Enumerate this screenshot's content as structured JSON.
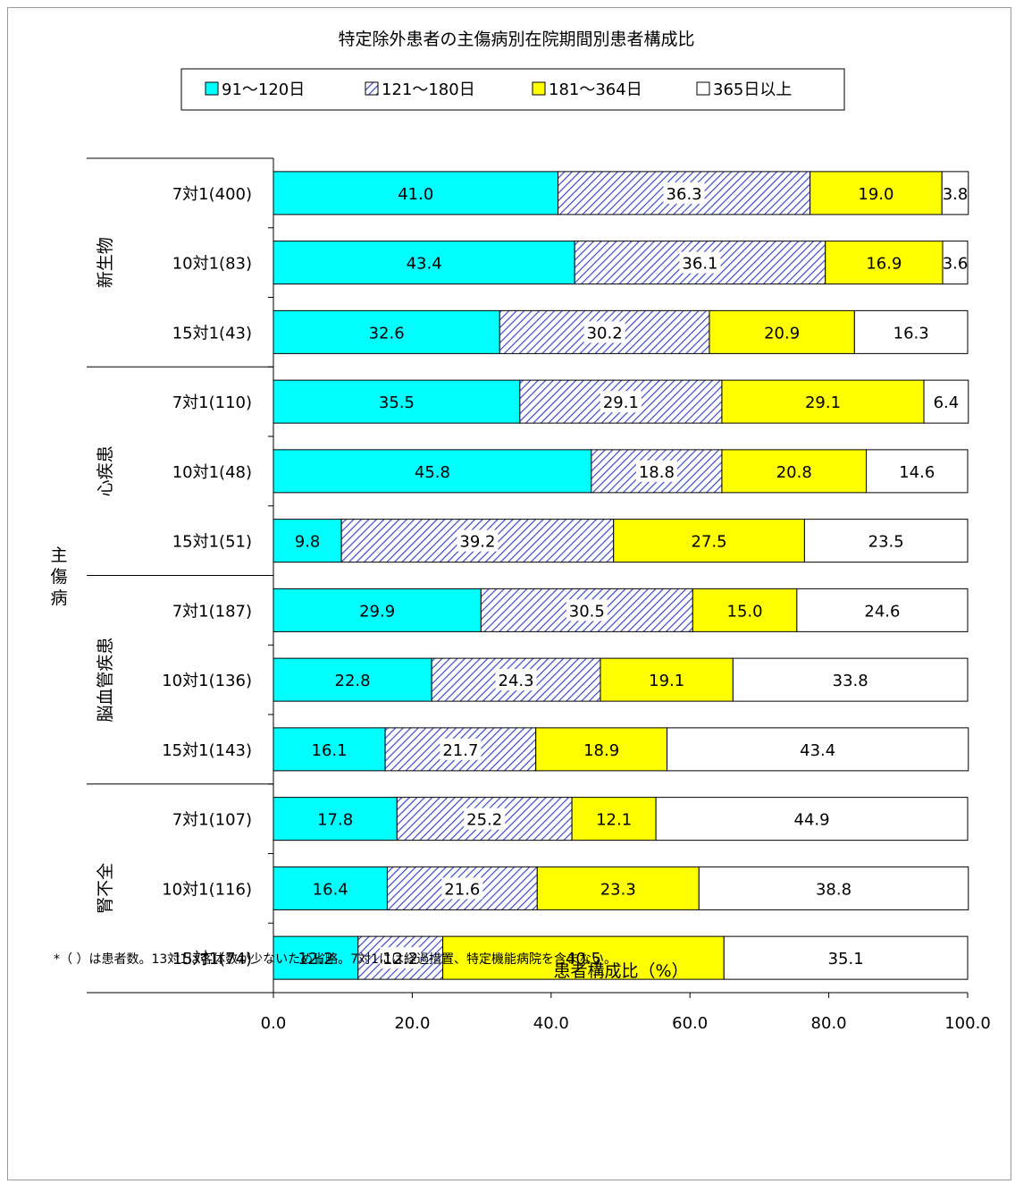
{
  "chart_data": {
    "type": "bar",
    "orientation": "horizontal",
    "stacked": true,
    "title": "特定除外患者の主傷病別在院期間別患者構成比",
    "xlabel": "患者構成比（%）",
    "ylabel": "主傷病",
    "xlim": [
      0,
      100
    ],
    "x_ticks": [
      "0.0",
      "20.0",
      "40.0",
      "60.0",
      "80.0",
      "100.0"
    ],
    "legend_position": "top",
    "groups": [
      {
        "name": "新生物",
        "rows": [
          {
            "label": "7対1(400)",
            "values": [
              41.0,
              36.3,
              19.0,
              3.8
            ]
          },
          {
            "label": "10対1(83)",
            "values": [
              43.4,
              36.1,
              16.9,
              3.6
            ]
          },
          {
            "label": "15対1(43)",
            "values": [
              32.6,
              30.2,
              20.9,
              16.3
            ]
          }
        ]
      },
      {
        "name": "心疾患",
        "rows": [
          {
            "label": "7対1(110)",
            "values": [
              35.5,
              29.1,
              29.1,
              6.4
            ]
          },
          {
            "label": "10対1(48)",
            "values": [
              45.8,
              18.8,
              20.8,
              14.6
            ]
          },
          {
            "label": "15対1(51)",
            "values": [
              9.8,
              39.2,
              27.5,
              23.5
            ]
          }
        ]
      },
      {
        "name": "脳血管疾患",
        "rows": [
          {
            "label": "7対1(187)",
            "values": [
              29.9,
              30.5,
              15.0,
              24.6
            ]
          },
          {
            "label": "10対1(136)",
            "values": [
              22.8,
              24.3,
              19.1,
              33.8
            ]
          },
          {
            "label": "15対1(143)",
            "values": [
              16.1,
              21.7,
              18.9,
              43.4
            ]
          }
        ]
      },
      {
        "name": "腎不全",
        "rows": [
          {
            "label": "7対1(107)",
            "values": [
              17.8,
              25.2,
              12.1,
              44.9
            ]
          },
          {
            "label": "10対1(116)",
            "values": [
              16.4,
              21.6,
              23.3,
              38.8
            ]
          },
          {
            "label": "15対1(74)",
            "values": [
              12.2,
              12.2,
              40.5,
              35.1
            ]
          }
        ]
      }
    ],
    "series": [
      {
        "name": "91〜120日",
        "color": "#00FFFF",
        "pattern": "solid"
      },
      {
        "name": "121〜180日",
        "color": "#3333CC",
        "pattern": "hatch"
      },
      {
        "name": "181〜364日",
        "color": "#FFFF00",
        "pattern": "solid"
      },
      {
        "name": "365日以上",
        "color": "#FFFFFF",
        "pattern": "solid"
      }
    ]
  },
  "footnote": "*（ ）は患者数。13対1は客体数が少ないため省略。7対1には経過措置、特定機能病院を含まない。"
}
